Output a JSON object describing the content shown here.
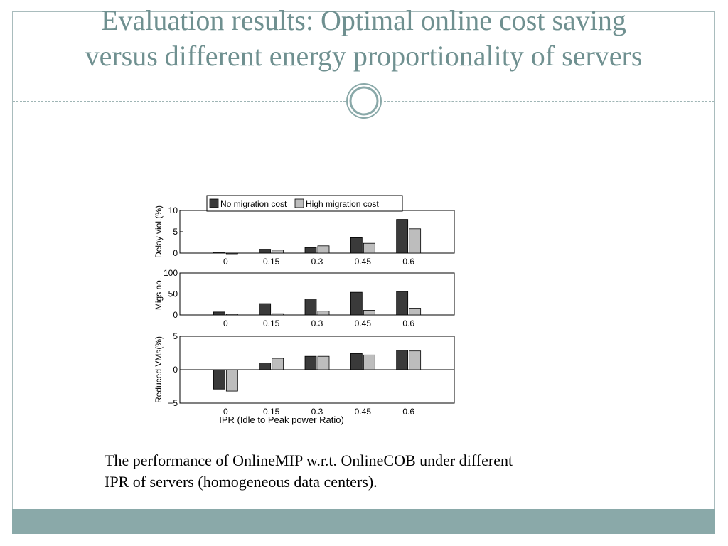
{
  "slide": {
    "title_line1": "Evaluation results: Optimal online cost saving",
    "title_line2": "versus different energy proportionality of servers",
    "caption_line1": "The performance of OnlineMIP w.r.t. OnlineCOB under different",
    "caption_line2": "IPR of servers (homogeneous data centers).",
    "colors": {
      "title": "#6f9090",
      "footer_bar": "#8aa9a9",
      "border": "#a9bcbd",
      "series_dark": "#3a3a3a",
      "series_light": "#bdbdbd"
    }
  },
  "chart_data": [
    {
      "type": "bar",
      "categories": [
        "0",
        "0.15",
        "0.3",
        "0.45",
        "0.6"
      ],
      "ylabel": "Delay viol.(%)",
      "xlabel": "",
      "ylim": [
        0,
        10
      ],
      "yticks": [
        "0",
        "5",
        "10"
      ],
      "legend": {
        "placement": "top",
        "entries": [
          "No migration cost",
          "High migration cost"
        ]
      },
      "series": [
        {
          "name": "No migration cost",
          "values": [
            0.2,
            0.9,
            1.3,
            3.6,
            7.9
          ]
        },
        {
          "name": "High migration cost",
          "values": [
            0.0,
            0.7,
            1.7,
            2.3,
            5.7
          ]
        }
      ]
    },
    {
      "type": "bar",
      "categories": [
        "0",
        "0.15",
        "0.3",
        "0.45",
        "0.6"
      ],
      "ylabel": "Migs no.",
      "xlabel": "",
      "ylim": [
        0,
        100
      ],
      "yticks": [
        "0",
        "50",
        "100"
      ],
      "series": [
        {
          "name": "No migration cost",
          "values": [
            7,
            27,
            38,
            54,
            56
          ]
        },
        {
          "name": "High migration cost",
          "values": [
            2,
            3,
            9,
            11,
            16
          ]
        }
      ]
    },
    {
      "type": "bar",
      "categories": [
        "0",
        "0.15",
        "0.3",
        "0.45",
        "0.6"
      ],
      "ylabel": "Reduced VMs(%)",
      "xlabel": "IPR (Idle to Peak power Ratio)",
      "ylim": [
        -5,
        5
      ],
      "yticks": [
        "−5",
        "0",
        "5"
      ],
      "series": [
        {
          "name": "No migration cost",
          "values": [
            -2.9,
            1.0,
            2.0,
            2.4,
            2.9
          ]
        },
        {
          "name": "High migration cost",
          "values": [
            -3.2,
            1.7,
            2.0,
            2.2,
            2.8
          ]
        }
      ]
    }
  ]
}
